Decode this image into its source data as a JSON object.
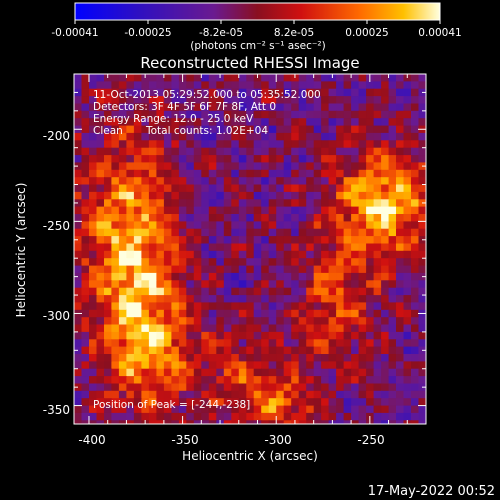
{
  "colorbar": {
    "tick_labels": [
      "-0.00041",
      "-0.00025",
      "-8.2e-05",
      "8.2e-05",
      "0.00025",
      "0.00041"
    ],
    "unit_label": "(photons cm⁻² s⁻¹ asec⁻²)",
    "range": [
      -0.00041,
      0.00041
    ]
  },
  "plot": {
    "title": "Reconstructed RHESSI Image",
    "xlabel": "Heliocentric X (arcsec)",
    "ylabel": "Heliocentric Y (arcsec)",
    "x_tick_labels": [
      "-400",
      "-350",
      "-300",
      "-250"
    ],
    "y_tick_labels": [
      "-200",
      "-250",
      "-300",
      "-350"
    ]
  },
  "info": {
    "line1": "11-Oct-2013 05:29:52.000 to 05:35:52.000",
    "line2": "Detectors: 3F 4F 5F 6F 7F 8F, Att 0",
    "line3": "Energy Range: 12.0 - 25.0 keV",
    "line4_method": "Clean",
    "line4_counts": "Total counts: 1.02E+04",
    "peak": "Position of Peak = [-244,-238]"
  },
  "footer": {
    "timestamp": "17-May-2022 00:52"
  },
  "chart_data": {
    "type": "heatmap",
    "title": "Reconstructed RHESSI Image",
    "xlabel": "Heliocentric X (arcsec)",
    "ylabel": "Heliocentric Y (arcsec)",
    "xlim": [
      -408,
      -220
    ],
    "ylim": [
      -360,
      -170
    ],
    "x_ticks": [
      -400,
      -350,
      -300,
      -250
    ],
    "y_ticks": [
      -200,
      -250,
      -300,
      -350
    ],
    "colorscale_range": [
      -0.00041,
      0.00041
    ],
    "peak_position": [
      -244,
      -238
    ],
    "sources": [
      {
        "x": -380,
        "y": -255,
        "sx": 18,
        "sy": 38,
        "amp": 0.00036
      },
      {
        "x": -372,
        "y": -315,
        "sx": 16,
        "sy": 28,
        "amp": 0.0003
      },
      {
        "x": -244,
        "y": -238,
        "sx": 20,
        "sy": 20,
        "amp": 0.00041
      },
      {
        "x": -270,
        "y": -290,
        "sx": 14,
        "sy": 22,
        "amp": 0.00022
      },
      {
        "x": -320,
        "y": -330,
        "sx": 22,
        "sy": 16,
        "amp": 0.00018
      },
      {
        "x": -300,
        "y": -350,
        "sx": 14,
        "sy": 10,
        "amp": 0.00022
      }
    ]
  }
}
